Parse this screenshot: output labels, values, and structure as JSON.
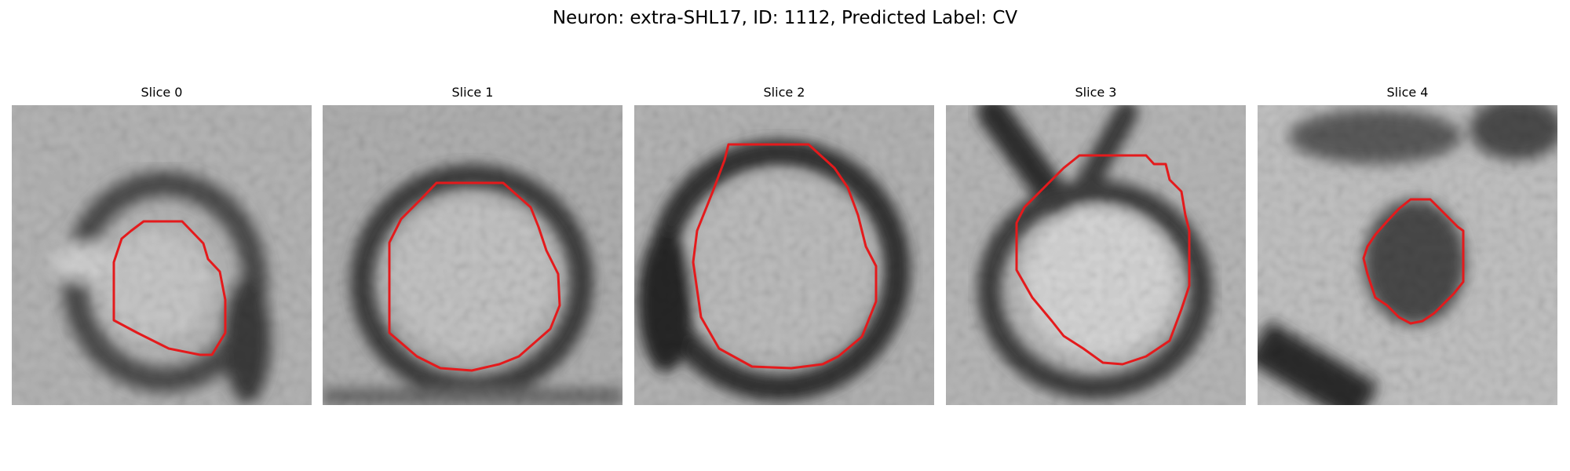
{
  "figure": {
    "title": "Neuron: extra-SHL17, ID: 1112, Predicted Label: CV"
  },
  "slices": [
    {
      "label": "Slice 0"
    },
    {
      "label": "Slice 1"
    },
    {
      "label": "Slice 2"
    },
    {
      "label": "Slice 3"
    },
    {
      "label": "Slice 4"
    }
  ],
  "colors": {
    "contour": "#e41a1c",
    "image_background": "#aaaaaa"
  }
}
